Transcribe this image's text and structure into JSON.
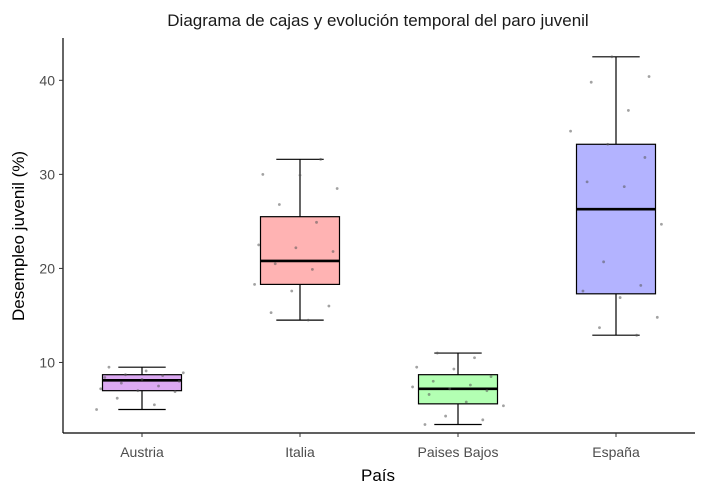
{
  "chart_data": {
    "type": "box",
    "title": "Diagrama de cajas y evolución temporal del paro juvenil",
    "xlabel": "País",
    "ylabel": "Desempleo juvenil (%)",
    "categories": [
      "Austria",
      "Italia",
      "Paises Bajos",
      "España"
    ],
    "ylim": [
      2.5,
      44.5
    ],
    "yticks": [
      10,
      20,
      30,
      40
    ],
    "grid": false,
    "legend": "none",
    "boxes": [
      {
        "name": "Austria",
        "whisker_low": 5.0,
        "q1": 7.0,
        "median": 8.1,
        "q3": 8.7,
        "whisker_high": 9.5,
        "fill": "#dca9f2"
      },
      {
        "name": "Italia",
        "whisker_low": 14.5,
        "q1": 18.3,
        "median": 20.8,
        "q3": 25.5,
        "whisker_high": 31.6,
        "fill": "#ffb3b3"
      },
      {
        "name": "Paises Bajos",
        "whisker_low": 3.4,
        "q1": 5.6,
        "median": 7.2,
        "q3": 8.7,
        "whisker_high": 11.0,
        "fill": "#b3ffb3"
      },
      {
        "name": "España",
        "whisker_low": 12.9,
        "q1": 17.3,
        "median": 26.3,
        "q3": 33.2,
        "whisker_high": 42.5,
        "fill": "#b3b3ff"
      }
    ],
    "points": [
      {
        "category": "Austria",
        "values": [
          5.0,
          5.5,
          6.2,
          6.9,
          7.0,
          7.2,
          7.5,
          7.8,
          8.0,
          8.2,
          8.4,
          8.6,
          8.7,
          8.9,
          9.1,
          9.5
        ]
      },
      {
        "category": "Italia",
        "values": [
          14.5,
          15.3,
          16.0,
          17.6,
          18.3,
          19.9,
          20.5,
          21.8,
          22.2,
          22.5,
          24.9,
          26.8,
          28.5,
          29.9,
          30.0,
          31.6
        ]
      },
      {
        "category": "Paises Bajos",
        "values": [
          3.4,
          3.9,
          4.3,
          5.4,
          5.8,
          6.6,
          7.0,
          7.2,
          7.4,
          7.6,
          8.0,
          8.5,
          9.3,
          9.5,
          10.5,
          11.0
        ]
      },
      {
        "category": "España",
        "values": [
          12.9,
          13.7,
          14.8,
          16.9,
          17.6,
          18.2,
          20.7,
          24.7,
          28.7,
          29.2,
          31.8,
          33.2,
          34.6,
          36.8,
          39.8,
          40.4,
          42.5
        ]
      }
    ]
  }
}
